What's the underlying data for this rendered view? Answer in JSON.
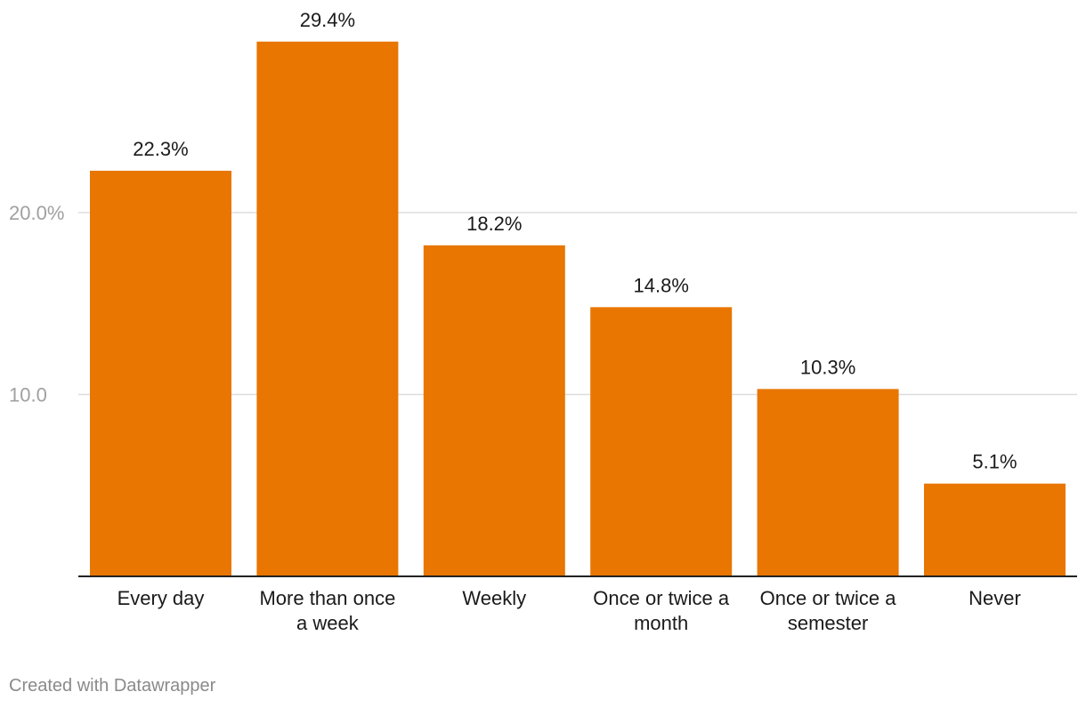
{
  "chart_data": {
    "type": "bar",
    "categories": [
      "Every day",
      "More than once a week",
      "Weekly",
      "Once or twice a month",
      "Once or twice a semester",
      "Never"
    ],
    "category_lines": [
      [
        "Every day"
      ],
      [
        "More than once",
        "a week"
      ],
      [
        "Weekly"
      ],
      [
        "Once or twice a",
        "month"
      ],
      [
        "Once or twice a",
        "semester"
      ],
      [
        "Never"
      ]
    ],
    "values": [
      22.3,
      29.4,
      18.2,
      14.8,
      10.3,
      5.1
    ],
    "value_labels": [
      "22.3%",
      "29.4%",
      "18.2%",
      "14.8%",
      "10.3%",
      "5.1%"
    ],
    "y_ticks": [
      10,
      20
    ],
    "y_tick_labels": [
      "10.0",
      "20.0%"
    ],
    "ylim": [
      0,
      30
    ],
    "grid": true,
    "bar_color": "#e87600",
    "title": "",
    "xlabel": "",
    "ylabel": ""
  },
  "footer": {
    "credit": "Created with Datawrapper"
  }
}
